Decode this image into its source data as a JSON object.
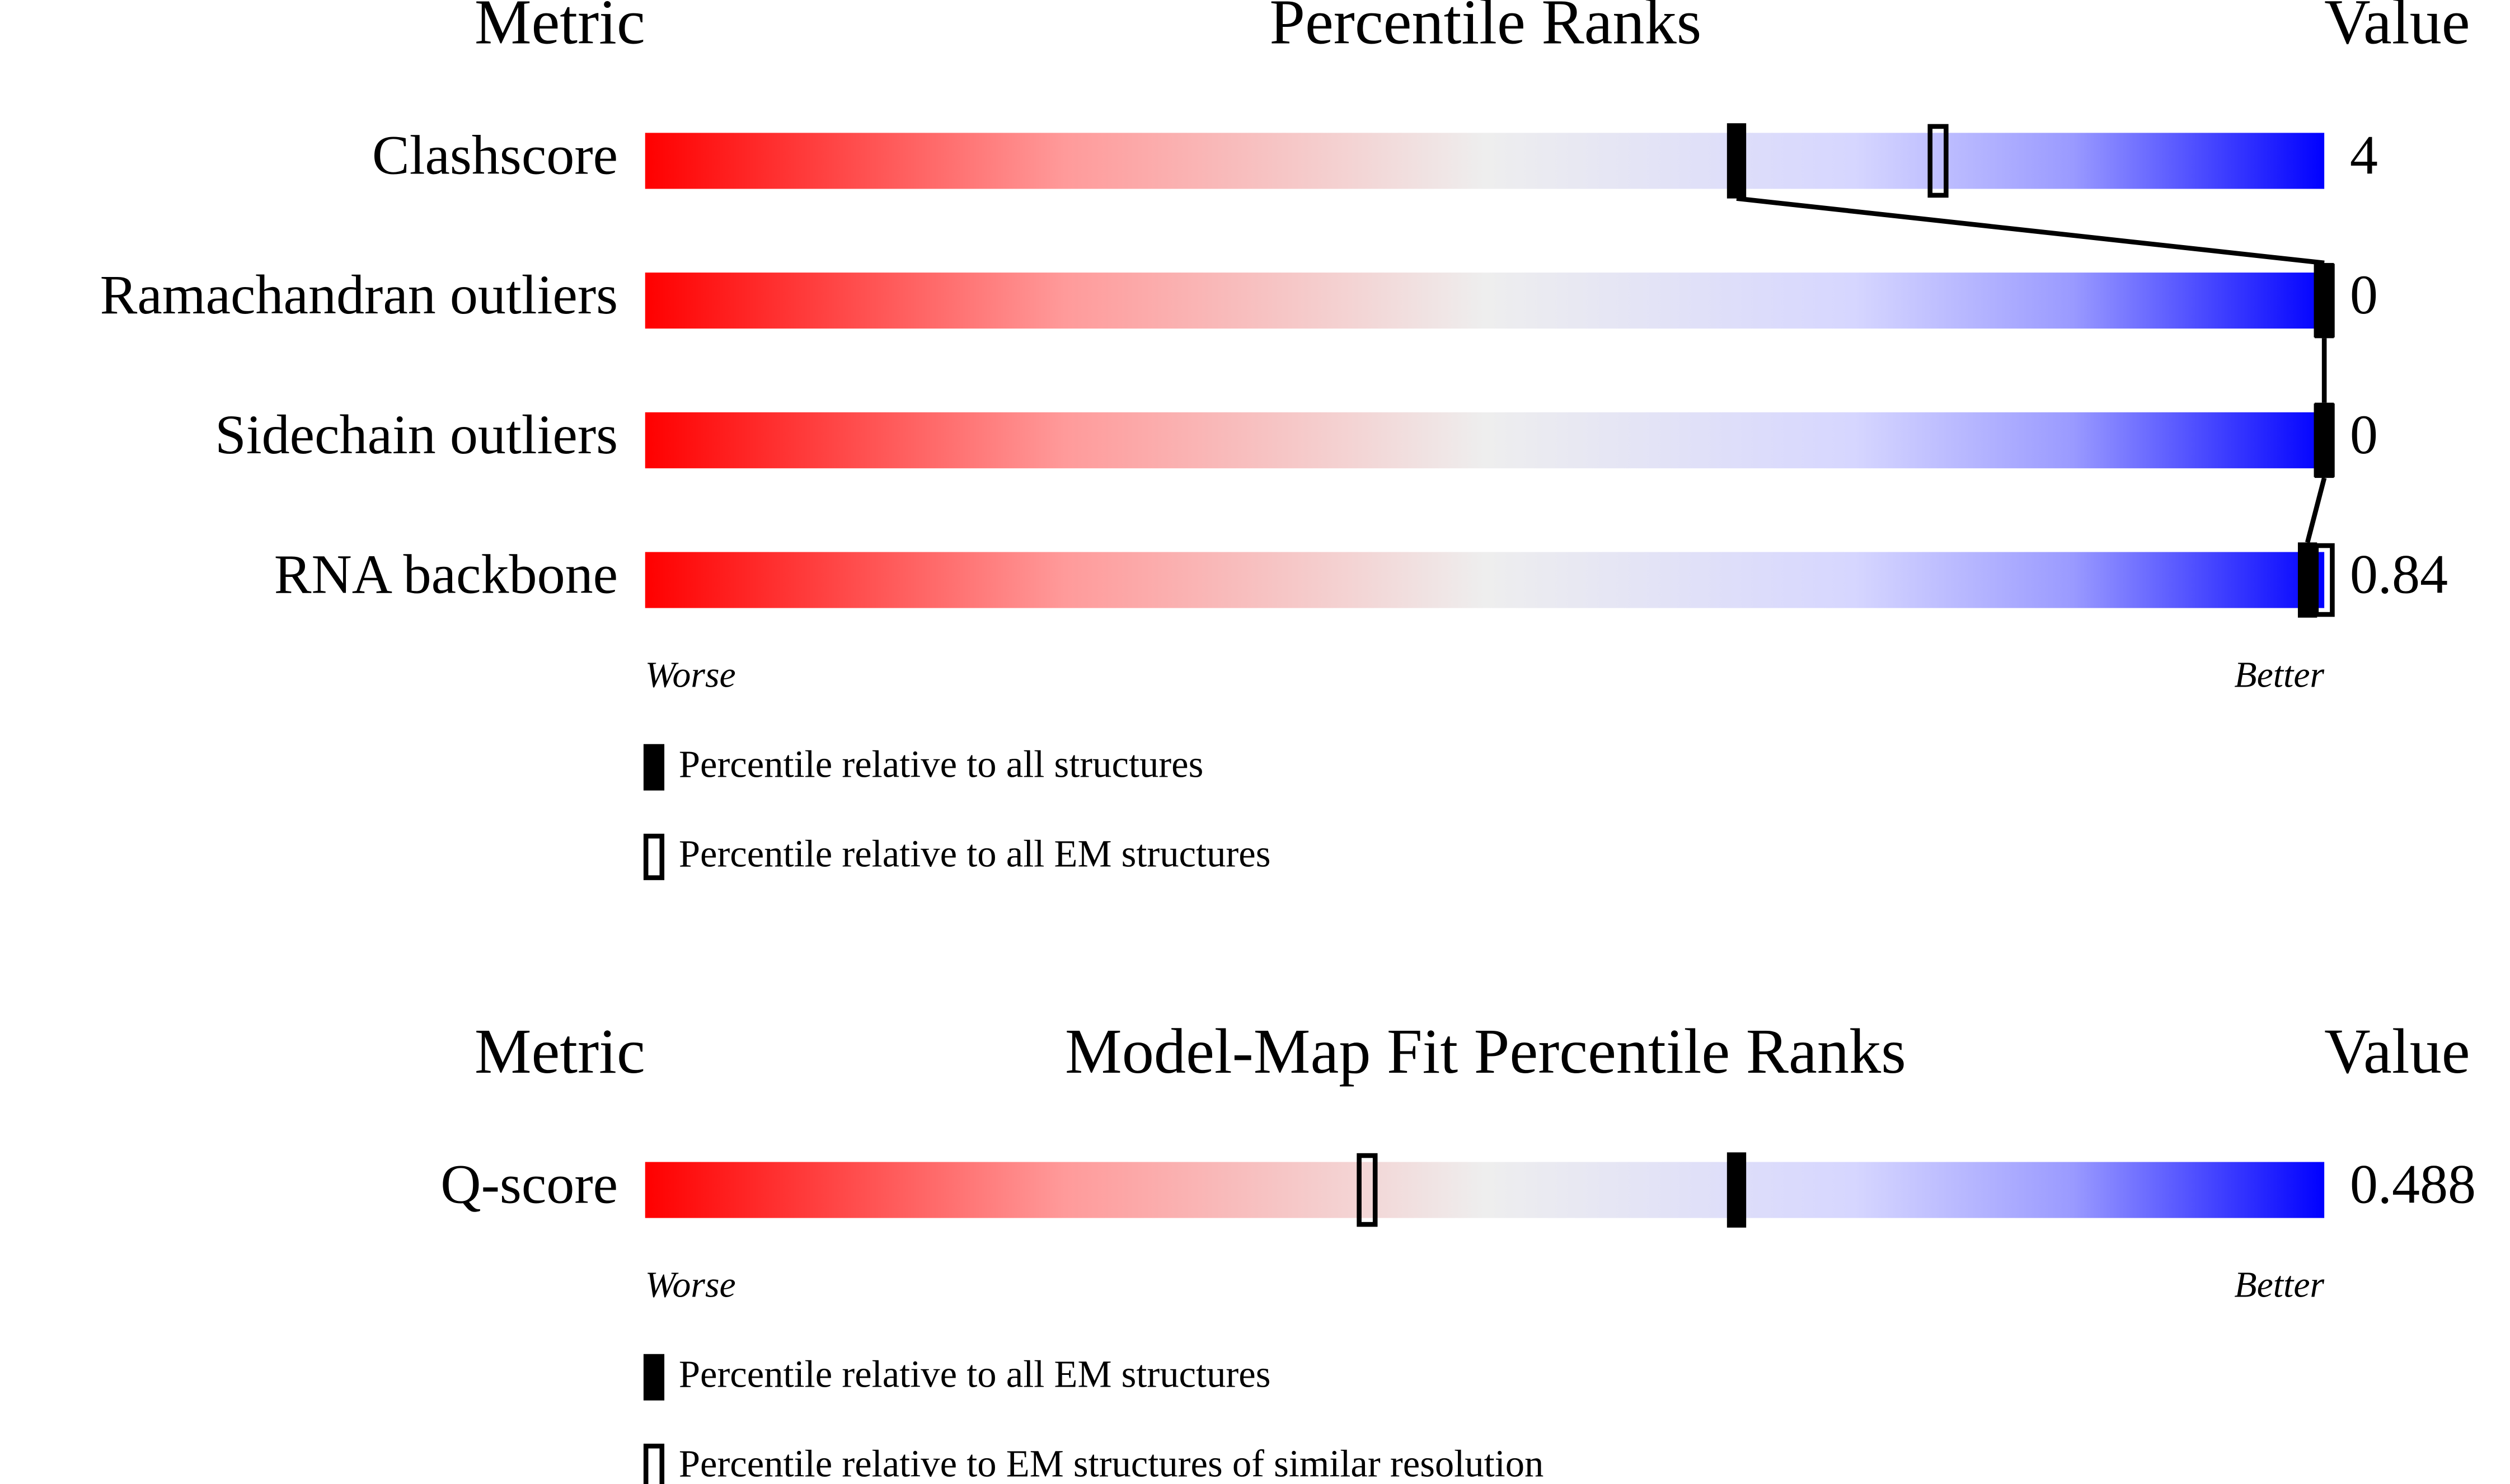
{
  "panels": [
    {
      "metric_header": "Metric",
      "title": "Percentile Ranks",
      "value_header": "Value",
      "rows": [
        {
          "metric": "Clashscore",
          "value": 4,
          "percentile_all": 65,
          "percentile_em": 77
        },
        {
          "metric": "Ramachandran outliers",
          "value": 0,
          "percentile_all": 100,
          "percentile_em": 100
        },
        {
          "metric": "Sidechain outliers",
          "value": 0,
          "percentile_all": 100,
          "percentile_em": 100
        },
        {
          "metric": "RNA backbone",
          "value": 0.84,
          "percentile_all": 99,
          "percentile_em": 100
        }
      ],
      "worse": "Worse",
      "better": "Better",
      "legend_filled": "Percentile relative to all structures",
      "legend_open": "Percentile relative to all EM structures"
    },
    {
      "metric_header": "Metric",
      "title": "Model-Map Fit Percentile Ranks",
      "value_header": "Value",
      "rows": [
        {
          "metric": "Q-score",
          "value": 0.488,
          "percentile_all": 65,
          "percentile_em": 43
        }
      ],
      "worse": "Worse",
      "better": "Better",
      "legend_filled": "Percentile relative to all EM structures",
      "legend_open": "Percentile relative to EM structures of similar resolution"
    }
  ]
}
